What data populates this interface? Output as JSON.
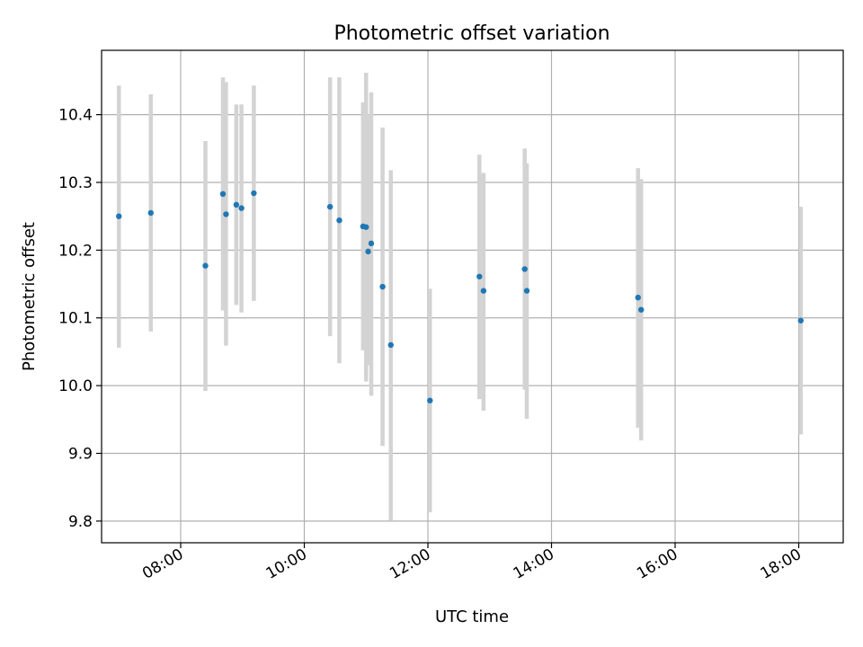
{
  "chart_data": {
    "type": "scatter",
    "title": "Photometric offset variation",
    "xlabel": "UTC time",
    "ylabel": "Photometric offset",
    "x_axis": {
      "kind": "time",
      "range_hours": [
        6.72,
        18.72
      ],
      "ticks": [
        {
          "hour": 8,
          "label": "08:00"
        },
        {
          "hour": 10,
          "label": "10:00"
        },
        {
          "hour": 12,
          "label": "12:00"
        },
        {
          "hour": 14,
          "label": "14:00"
        },
        {
          "hour": 16,
          "label": "16:00"
        },
        {
          "hour": 18,
          "label": "18:00"
        }
      ]
    },
    "y_axis": {
      "ylim": [
        9.768,
        10.495
      ],
      "ticks": [
        {
          "value": 9.8,
          "label": "9.8"
        },
        {
          "value": 9.9,
          "label": "9.9"
        },
        {
          "value": 10.0,
          "label": "10.0"
        },
        {
          "value": 10.1,
          "label": "10.1"
        },
        {
          "value": 10.2,
          "label": "10.2"
        },
        {
          "value": 10.3,
          "label": "10.3"
        },
        {
          "value": 10.4,
          "label": "10.4"
        }
      ]
    },
    "grid": true,
    "point_color": "#1f77b4",
    "errorbar_color": "#d3d3d3",
    "points": [
      {
        "x": "07:00",
        "y": 10.25,
        "ylo": 10.056,
        "yhi": 10.443
      },
      {
        "x": "07:31",
        "y": 10.255,
        "ylo": 10.08,
        "yhi": 10.43
      },
      {
        "x": "08:24",
        "y": 10.177,
        "ylo": 9.992,
        "yhi": 10.361
      },
      {
        "x": "08:41",
        "y": 10.283,
        "ylo": 10.111,
        "yhi": 10.455
      },
      {
        "x": "08:44",
        "y": 10.253,
        "ylo": 10.059,
        "yhi": 10.448
      },
      {
        "x": "08:54",
        "y": 10.267,
        "ylo": 10.119,
        "yhi": 10.415
      },
      {
        "x": "08:59",
        "y": 10.262,
        "ylo": 10.108,
        "yhi": 10.415
      },
      {
        "x": "09:11",
        "y": 10.284,
        "ylo": 10.125,
        "yhi": 10.443
      },
      {
        "x": "10:25",
        "y": 10.264,
        "ylo": 10.073,
        "yhi": 10.455
      },
      {
        "x": "10:34",
        "y": 10.244,
        "ylo": 10.033,
        "yhi": 10.455
      },
      {
        "x": "10:57",
        "y": 10.235,
        "ylo": 10.052,
        "yhi": 10.418
      },
      {
        "x": "11:00",
        "y": 10.234,
        "ylo": 10.006,
        "yhi": 10.462
      },
      {
        "x": "11:02",
        "y": 10.198,
        "ylo": 10.03,
        "yhi": 10.4
      },
      {
        "x": "11:05",
        "y": 10.21,
        "ylo": 9.985,
        "yhi": 10.433
      },
      {
        "x": "11:16",
        "y": 10.146,
        "ylo": 9.911,
        "yhi": 10.381
      },
      {
        "x": "11:24",
        "y": 10.06,
        "ylo": 9.801,
        "yhi": 10.318
      },
      {
        "x": "12:02",
        "y": 9.978,
        "ylo": 9.813,
        "yhi": 10.143
      },
      {
        "x": "12:50",
        "y": 10.161,
        "ylo": 9.98,
        "yhi": 10.341
      },
      {
        "x": "12:54",
        "y": 10.14,
        "ylo": 9.963,
        "yhi": 10.314
      },
      {
        "x": "13:34",
        "y": 10.172,
        "ylo": 9.994,
        "yhi": 10.35
      },
      {
        "x": "13:36",
        "y": 10.14,
        "ylo": 9.951,
        "yhi": 10.328
      },
      {
        "x": "15:24",
        "y": 10.13,
        "ylo": 9.938,
        "yhi": 10.321
      },
      {
        "x": "15:27",
        "y": 10.112,
        "ylo": 9.919,
        "yhi": 10.305
      },
      {
        "x": "18:02",
        "y": 10.096,
        "ylo": 9.928,
        "yhi": 10.264
      }
    ]
  }
}
